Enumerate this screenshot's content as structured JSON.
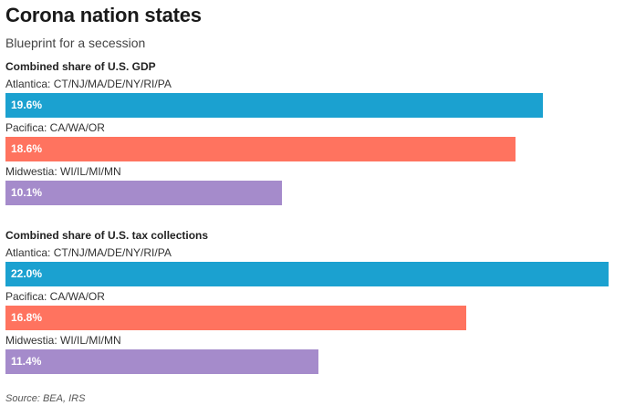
{
  "header": {
    "title": "Corona nation states",
    "subtitle": "Blueprint for a secession"
  },
  "footer": {
    "source": "Source: BEA, IRS"
  },
  "chart_data": [
    {
      "type": "bar",
      "orientation": "horizontal",
      "title": "Combined share of U.S. GDP",
      "categories": [
        "Atlantica: CT/NJ/MA/DE/NY/RI/PA",
        "Pacifica: CA/WA/OR",
        "Midwestia: WI/IL/MI/MN"
      ],
      "values": [
        19.6,
        18.6,
        10.1
      ],
      "value_labels": [
        "19.6%",
        "18.6%",
        "10.1%"
      ],
      "colors": [
        "#1ba1d0",
        "#ff735f",
        "#a58bcb"
      ],
      "xlim": [
        0,
        22.0
      ]
    },
    {
      "type": "bar",
      "orientation": "horizontal",
      "title": "Combined share of U.S. tax collections",
      "categories": [
        "Atlantica: CT/NJ/MA/DE/NY/RI/PA",
        "Pacifica: CA/WA/OR",
        "Midwestia: WI/IL/MI/MN"
      ],
      "values": [
        22.0,
        16.8,
        11.4
      ],
      "value_labels": [
        "22.0%",
        "16.8%",
        "11.4%"
      ],
      "colors": [
        "#1ba1d0",
        "#ff735f",
        "#a58bcb"
      ],
      "xlim": [
        0,
        22.0
      ]
    }
  ]
}
